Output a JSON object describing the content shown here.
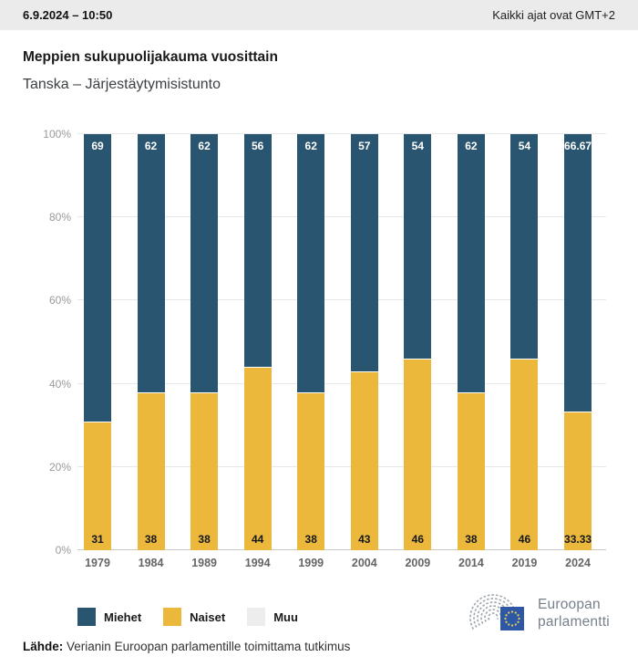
{
  "header": {
    "datetime": "6.9.2024 – 10:50",
    "timezone": "Kaikki ajat ovat GMT+2"
  },
  "title": "Meppien sukupuolijakauma vuosittain",
  "subtitle": "Tanska – Järjestäytymisistunto",
  "chart_data": {
    "type": "bar",
    "stacked": true,
    "title": "Meppien sukupuolijakauma vuosittain",
    "subtitle": "Tanska – Järjestäytymisistunto",
    "categories": [
      "1979",
      "1984",
      "1989",
      "1994",
      "1999",
      "2004",
      "2009",
      "2014",
      "2019",
      "2024"
    ],
    "series": [
      {
        "name": "Miehet",
        "color": "#2A5570",
        "label_position": "top",
        "label_color": "#ffffff",
        "values": [
          69,
          62,
          62,
          56,
          62,
          57,
          54,
          62,
          54,
          66.67
        ]
      },
      {
        "name": "Naiset",
        "color": "#EBB83C",
        "label_position": "bottom",
        "label_color": "#14181c",
        "values": [
          31,
          38,
          38,
          44,
          38,
          43,
          46,
          38,
          46,
          33.33
        ]
      },
      {
        "name": "Muu",
        "color": "#EDEDED",
        "label_position": "none",
        "label_color": "#14181c",
        "values": [
          0,
          0,
          0,
          0,
          0,
          0,
          0,
          0,
          0,
          0
        ]
      }
    ],
    "xlabel": "",
    "ylabel": "",
    "ylim": [
      0,
      100
    ],
    "yticks": [
      "0%",
      "20%",
      "40%",
      "60%",
      "80%",
      "100%"
    ],
    "grid": true,
    "legend_position": "bottom"
  },
  "footer": {
    "source_label": "Lähde:",
    "source_text": "Verianin Euroopan parlamentille toimittama tutkimus"
  },
  "logo": {
    "line1": "Euroopan",
    "line2": "parlamentti",
    "flag_color": "#2E58A5",
    "star_color": "#EDD34D",
    "arc_color": "#9FA6AD"
  }
}
